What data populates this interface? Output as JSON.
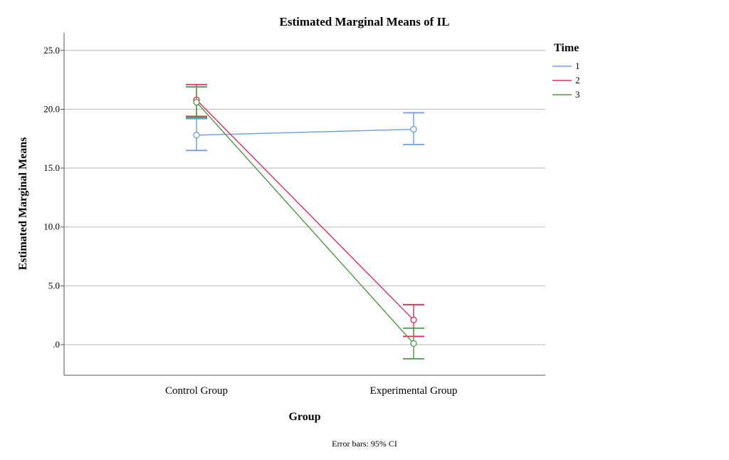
{
  "chart_data": {
    "type": "line",
    "title": "Estimated Marginal Means of IL",
    "xlabel": "Group",
    "ylabel": "Estimated Marginal Means",
    "categories": [
      "Control Group",
      "Experimental Group"
    ],
    "ylim": [
      -2.6,
      26.5
    ],
    "yticks": [
      0,
      5,
      10,
      15,
      20,
      25
    ],
    "ytick_labels": [
      ".0",
      "5.0",
      "10.0",
      "15.0",
      "20.0",
      "25.0"
    ],
    "grid": true,
    "legend": {
      "title": "Time",
      "position": "top-right"
    },
    "series": [
      {
        "name": "1",
        "color": "#6a9fe3",
        "values": [
          17.8,
          18.3
        ],
        "ci_low": [
          16.5,
          17.0
        ],
        "ci_high": [
          19.2,
          19.7
        ]
      },
      {
        "name": "2",
        "color": "#d8315b",
        "values": [
          20.8,
          2.1
        ],
        "ci_low": [
          19.4,
          0.7
        ],
        "ci_high": [
          22.1,
          3.4
        ]
      },
      {
        "name": "3",
        "color": "#4e9a45",
        "values": [
          20.6,
          0.1
        ],
        "ci_low": [
          19.3,
          -1.2
        ],
        "ci_high": [
          21.9,
          1.4
        ]
      }
    ],
    "footnote": "Error bars: 95% CI"
  }
}
